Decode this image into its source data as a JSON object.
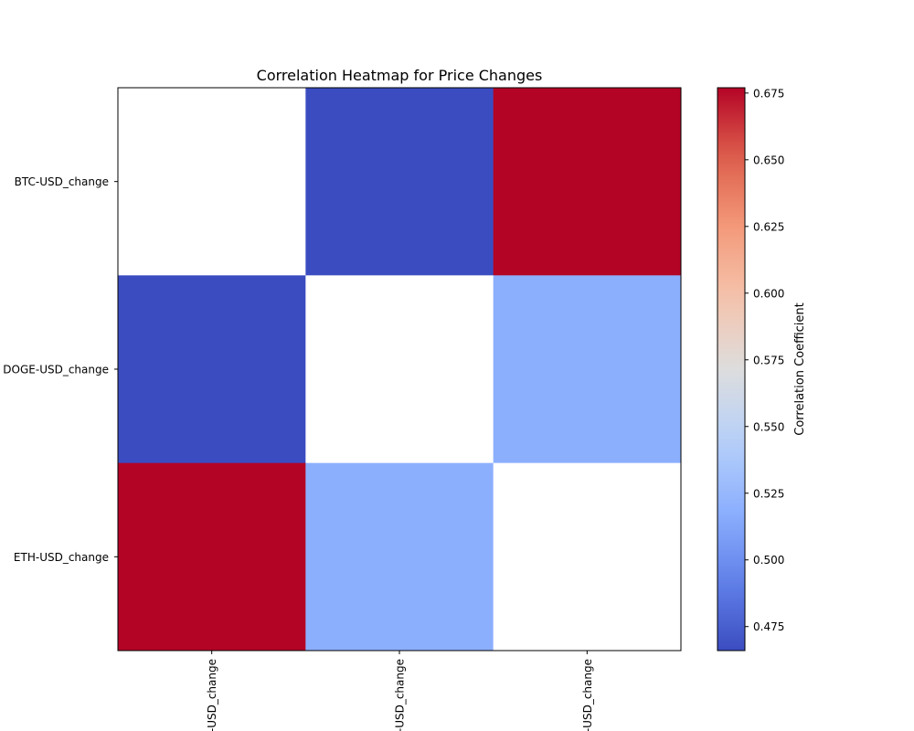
{
  "chart_data": {
    "type": "heatmap",
    "title": "Correlation Heatmap for Price Changes",
    "row_labels": [
      "BTC-USD_change",
      "DOGE-USD_change",
      "ETH-USD_change"
    ],
    "col_labels": [
      "BTC-USD_change",
      "DOGE-USD_change",
      "ETH-USD_change"
    ],
    "values": [
      [
        null,
        0.466,
        0.677
      ],
      [
        0.466,
        null,
        0.518
      ],
      [
        0.677,
        0.518,
        null
      ]
    ],
    "colormap": "coolwarm",
    "colorbar": {
      "label": "Correlation Coefficient",
      "range": [
        0.466,
        0.677
      ],
      "ticks": [
        0.475,
        0.5,
        0.525,
        0.55,
        0.575,
        0.6,
        0.625,
        0.65,
        0.675
      ],
      "tick_labels": [
        "0.475",
        "0.500",
        "0.525",
        "0.550",
        "0.575",
        "0.600",
        "0.625",
        "0.650",
        "0.675"
      ]
    },
    "grid": false
  }
}
